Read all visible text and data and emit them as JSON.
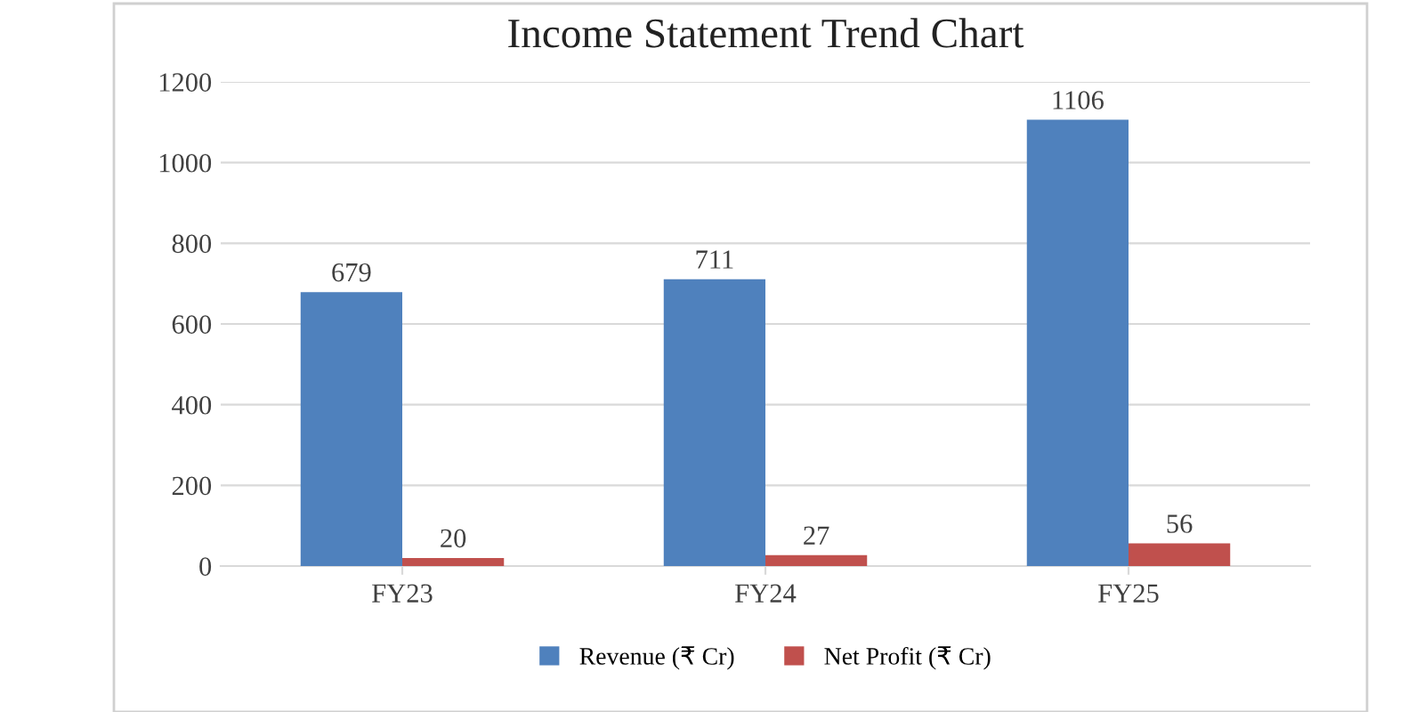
{
  "chart_data": {
    "type": "bar",
    "title": "Income Statement Trend Chart",
    "categories": [
      "FY23",
      "FY24",
      "FY25"
    ],
    "series": [
      {
        "name": "Revenue (₹ Cr)",
        "color": "#4f81bd",
        "values": [
          679,
          711,
          1106
        ]
      },
      {
        "name": "Net Profit (₹ Cr)",
        "color": "#c0504d",
        "values": [
          20,
          27,
          56
        ]
      }
    ],
    "ylim": [
      0,
      1200
    ],
    "yticks": [
      0,
      200,
      400,
      600,
      800,
      1000,
      1200
    ],
    "grid": "y",
    "legend": "bottom",
    "data_labels": true
  }
}
